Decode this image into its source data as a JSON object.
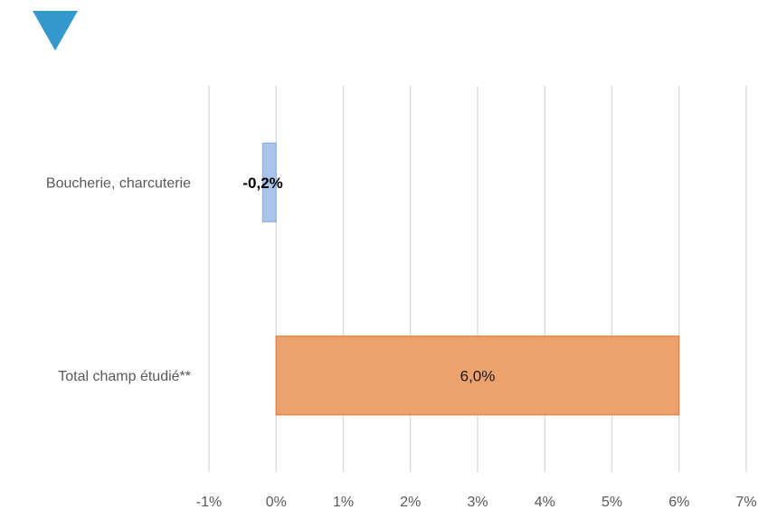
{
  "marker": {
    "icon": "down-triangle-icon",
    "color": "#3399CC"
  },
  "chart_data": {
    "type": "bar",
    "orientation": "horizontal",
    "categories": [
      "Boucherie, charcuterie",
      "Total champ étudié**"
    ],
    "values": [
      -0.2,
      6.0
    ],
    "value_labels": [
      "-0,2%",
      "6,0%"
    ],
    "bar_colors": [
      "#A9C4EB",
      "#EDA26E"
    ],
    "bar_edge_colors": [
      "#8FB0E0",
      "#E07F3A"
    ],
    "label_colors": [
      "#000000",
      "#1a1a1a"
    ],
    "label_bold": [
      true,
      false
    ],
    "xlim": [
      -1,
      7
    ],
    "xticks": [
      -1,
      0,
      1,
      2,
      3,
      4,
      5,
      6,
      7
    ],
    "xtick_labels": [
      "-1%",
      "0%",
      "1%",
      "2%",
      "3%",
      "4%",
      "5%",
      "6%",
      "7%"
    ],
    "grid": true,
    "gridline_color": "#D9D9D9",
    "title": "",
    "xlabel": "",
    "ylabel": ""
  }
}
